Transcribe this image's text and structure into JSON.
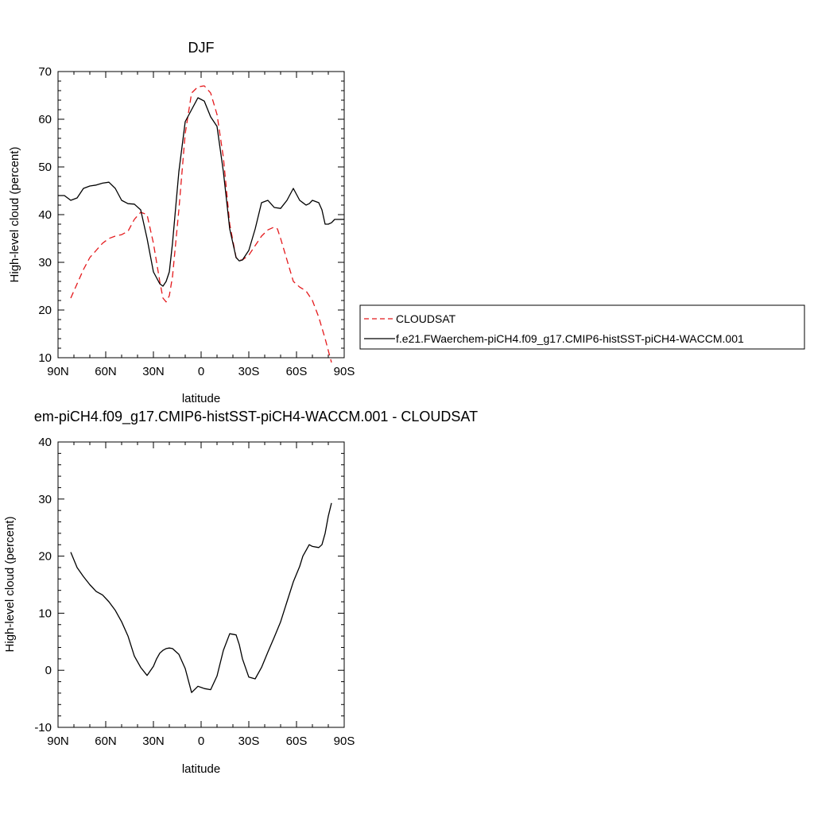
{
  "chart_data": [
    {
      "type": "line",
      "title": "DJF",
      "xlabel": "latitude",
      "ylabel": "High-level cloud (percent)",
      "xlim": [
        90,
        -90
      ],
      "ylim": [
        10,
        70
      ],
      "x_ticks": [
        90,
        60,
        30,
        0,
        -30,
        -60,
        -90
      ],
      "x_tick_labels": [
        "90N",
        "60N",
        "30N",
        "0",
        "30S",
        "60S",
        "90S"
      ],
      "y_ticks": [
        10,
        20,
        30,
        40,
        50,
        60,
        70
      ],
      "y_tick_labels": [
        "10",
        "20",
        "30",
        "40",
        "50",
        "60",
        "70"
      ],
      "legend": {
        "placement": "outside-right",
        "entries": [
          {
            "label": "CLOUDSAT",
            "color": "#e4191c",
            "style": "dashed"
          },
          {
            "label": "f.e21.FWaerchem-piCH4.f09_g17.CMIP6-histSST-piCH4-WACCM.001",
            "color": "#000000",
            "style": "solid"
          }
        ]
      },
      "series": [
        {
          "name": "CLOUDSAT",
          "color": "#e4191c",
          "style": "dashed",
          "x": [
            82,
            78,
            74,
            70,
            66,
            62,
            58,
            54,
            50,
            46,
            42,
            38,
            34,
            30,
            26,
            24,
            22,
            20,
            18,
            14,
            10,
            6,
            2,
            -2,
            -6,
            -10,
            -14,
            -18,
            -22,
            -24,
            -26,
            -30,
            -34,
            -38,
            -42,
            -46,
            -48,
            -50,
            -54,
            -58,
            -62,
            -66,
            -70,
            -74,
            -78,
            -82
          ],
          "y": [
            22.5,
            25.5,
            28.5,
            31,
            32.5,
            34,
            35,
            35.5,
            35.8,
            36.5,
            39,
            40.5,
            40,
            34,
            26,
            22.5,
            21.7,
            23,
            27,
            41,
            57,
            65.5,
            66.8,
            67,
            65.5,
            61,
            52,
            38,
            31,
            30.5,
            30.5,
            31.5,
            33.5,
            35.5,
            36.8,
            37.4,
            37,
            35,
            30.5,
            26,
            24.8,
            24,
            22,
            18.5,
            14,
            9
          ]
        },
        {
          "name": "f.e21.FWaerchem-piCH4.f09_g17.CMIP6-histSST-piCH4-WACCM.001",
          "color": "#000000",
          "style": "solid",
          "x": [
            90,
            86,
            82,
            78,
            74,
            70,
            66,
            62,
            58,
            54,
            50,
            46,
            42,
            38,
            34,
            30,
            26,
            24,
            22,
            20,
            18,
            14,
            10,
            6,
            2,
            -2,
            -6,
            -10,
            -14,
            -18,
            -22,
            -24,
            -26,
            -30,
            -34,
            -38,
            -42,
            -46,
            -50,
            -54,
            -58,
            -62,
            -66,
            -68,
            -70,
            -74,
            -76,
            -78,
            -80,
            -82,
            -84,
            -86,
            -88,
            -90
          ],
          "y": [
            44,
            44,
            43,
            43.5,
            45.5,
            46,
            46.2,
            46.6,
            46.8,
            45.5,
            43,
            42.3,
            42.2,
            41,
            35,
            28,
            25.5,
            25,
            26,
            28,
            34,
            49,
            59.5,
            62,
            64.5,
            63.8,
            60.5,
            58.5,
            49,
            37,
            31,
            30.3,
            30.5,
            32.5,
            37,
            42.5,
            43,
            41.5,
            41.3,
            43,
            45.5,
            43,
            42,
            42.3,
            43,
            42.5,
            41,
            38,
            38,
            38.3,
            39,
            39,
            39,
            39
          ]
        }
      ]
    },
    {
      "type": "line",
      "title": "em-piCH4.f09_g17.CMIP6-histSST-piCH4-WACCM.001 - CLOUDSAT",
      "xlabel": "latitude",
      "ylabel": "High-level cloud (percent)",
      "xlim": [
        90,
        -90
      ],
      "ylim": [
        -10,
        40
      ],
      "x_ticks": [
        90,
        60,
        30,
        0,
        -30,
        -60,
        -90
      ],
      "x_tick_labels": [
        "90N",
        "60N",
        "30N",
        "0",
        "30S",
        "60S",
        "90S"
      ],
      "y_ticks": [
        -10,
        0,
        10,
        20,
        30,
        40
      ],
      "y_tick_labels": [
        "-10",
        "0",
        "10",
        "20",
        "30",
        "40"
      ],
      "series": [
        {
          "color": "#000000",
          "style": "solid",
          "x": [
            82,
            78,
            74,
            70,
            66,
            62,
            58,
            54,
            50,
            46,
            42,
            38,
            34,
            30,
            28,
            26,
            24,
            22,
            20,
            18,
            14,
            10,
            6,
            2,
            -2,
            -6,
            -10,
            -14,
            -18,
            -22,
            -24,
            -26,
            -30,
            -34,
            -38,
            -42,
            -46,
            -50,
            -54,
            -58,
            -62,
            -64,
            -66,
            -68,
            -70,
            -74,
            -76,
            -78,
            -80,
            -82
          ],
          "y": [
            20.7,
            18,
            16.4,
            15,
            13.8,
            13.2,
            12,
            10.5,
            8.5,
            6,
            2.5,
            0.5,
            -0.9,
            0.7,
            2,
            3,
            3.5,
            3.8,
            3.9,
            3.8,
            2.8,
            0.3,
            -3.9,
            -2.8,
            -3.2,
            -3.4,
            -1,
            3.5,
            6.4,
            6.2,
            4.5,
            2,
            -1.2,
            -1.5,
            0.5,
            3.2,
            5.8,
            8.5,
            12,
            15.5,
            18.2,
            20,
            21,
            22,
            21.7,
            21.5,
            22,
            24,
            27,
            29.3
          ]
        }
      ]
    }
  ]
}
